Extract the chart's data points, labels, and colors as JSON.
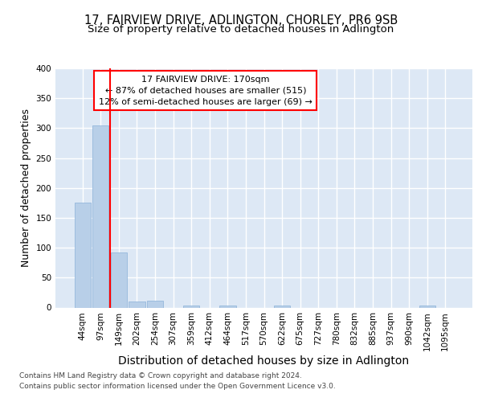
{
  "title1": "17, FAIRVIEW DRIVE, ADLINGTON, CHORLEY, PR6 9SB",
  "title2": "Size of property relative to detached houses in Adlington",
  "xlabel": "Distribution of detached houses by size in Adlington",
  "ylabel": "Number of detached properties",
  "footer1": "Contains HM Land Registry data © Crown copyright and database right 2024.",
  "footer2": "Contains public sector information licensed under the Open Government Licence v3.0.",
  "annotation_line1": "17 FAIRVIEW DRIVE: 170sqm",
  "annotation_line2": "← 87% of detached houses are smaller (515)",
  "annotation_line3": "12% of semi-detached houses are larger (69) →",
  "bins": [
    "44sqm",
    "97sqm",
    "149sqm",
    "202sqm",
    "254sqm",
    "307sqm",
    "359sqm",
    "412sqm",
    "464sqm",
    "517sqm",
    "570sqm",
    "622sqm",
    "675sqm",
    "727sqm",
    "780sqm",
    "832sqm",
    "885sqm",
    "937sqm",
    "990sqm",
    "1042sqm",
    "1095sqm"
  ],
  "values": [
    175,
    305,
    92,
    10,
    12,
    0,
    3,
    0,
    4,
    0,
    0,
    4,
    0,
    0,
    0,
    0,
    0,
    0,
    0,
    3,
    0
  ],
  "bar_color": "#b8cfe8",
  "red_line_x": 1.5,
  "ylim": [
    0,
    400
  ],
  "yticks": [
    0,
    50,
    100,
    150,
    200,
    250,
    300,
    350,
    400
  ],
  "bg_color": "#dde8f5",
  "grid_color": "#ffffff",
  "title1_fontsize": 10.5,
  "title2_fontsize": 9.5,
  "axis_label_fontsize": 9,
  "tick_fontsize": 7.5,
  "footer_fontsize": 6.5
}
